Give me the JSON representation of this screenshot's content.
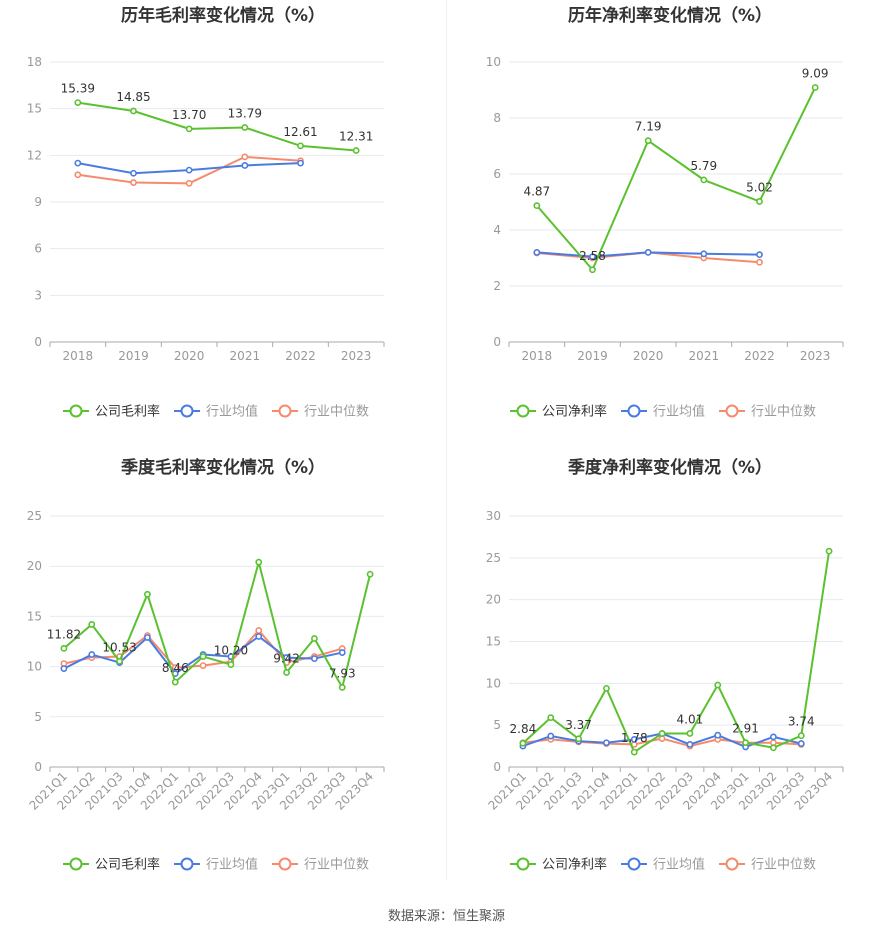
{
  "source": "数据来源：恒生聚源",
  "colors": {
    "company": "#5ac12f",
    "avg": "#4a7be0",
    "median": "#f58a6c",
    "grid": "#e6e9f0",
    "axis": "#999999"
  },
  "chart_data": [
    {
      "type": "line",
      "title": "历年毛利率变化情况（%）",
      "categories": [
        "2018",
        "2019",
        "2020",
        "2021",
        "2022",
        "2023"
      ],
      "ylim": [
        0,
        18
      ],
      "yticks": [
        0,
        3,
        6,
        9,
        12,
        15,
        18
      ],
      "legend_position": "bottom",
      "series": [
        {
          "name": "公司毛利率",
          "role": "company",
          "values": [
            15.39,
            14.85,
            13.7,
            13.79,
            12.61,
            12.31
          ],
          "labels": [
            "15.39",
            "14.85",
            "13.70",
            "13.79",
            "12.61",
            "12.31"
          ]
        },
        {
          "name": "行业均值",
          "role": "avg",
          "values": [
            11.5,
            10.85,
            11.05,
            11.35,
            11.5,
            null
          ]
        },
        {
          "name": "行业中位数",
          "role": "median",
          "values": [
            10.75,
            10.25,
            10.2,
            11.9,
            11.65,
            null
          ]
        }
      ]
    },
    {
      "type": "line",
      "title": "历年净利率变化情况（%）",
      "categories": [
        "2018",
        "2019",
        "2020",
        "2021",
        "2022",
        "2023"
      ],
      "ylim": [
        0,
        10
      ],
      "yticks": [
        0,
        2,
        4,
        6,
        8,
        10
      ],
      "legend_position": "bottom",
      "series": [
        {
          "name": "公司净利率",
          "role": "company",
          "values": [
            4.87,
            2.58,
            7.19,
            5.79,
            5.02,
            9.09
          ],
          "labels": [
            "4.87",
            "2.58",
            "7.19",
            "5.79",
            "5.02",
            "9.09"
          ]
        },
        {
          "name": "行业均值",
          "role": "avg",
          "values": [
            3.2,
            3.05,
            3.2,
            3.15,
            3.12,
            null
          ]
        },
        {
          "name": "行业中位数",
          "role": "median",
          "values": [
            3.18,
            3.0,
            3.2,
            3.0,
            2.85,
            null
          ]
        }
      ]
    },
    {
      "type": "line",
      "title": "季度毛利率变化情况（%）",
      "categories": [
        "2021Q1",
        "2021Q2",
        "2021Q3",
        "2021Q4",
        "2022Q1",
        "2022Q2",
        "2022Q3",
        "2022Q4",
        "2023Q1",
        "2023Q2",
        "2023Q3",
        "2023Q4"
      ],
      "ylim": [
        0,
        25
      ],
      "yticks": [
        0,
        5,
        10,
        15,
        20,
        25
      ],
      "legend_position": "bottom",
      "series": [
        {
          "name": "公司毛利率",
          "role": "company",
          "values": [
            11.82,
            14.2,
            10.53,
            17.2,
            8.46,
            11.0,
            10.2,
            20.4,
            9.42,
            12.8,
            7.93,
            19.2
          ],
          "labels": [
            "11.82",
            "",
            "10.53",
            "",
            "8.46",
            "",
            "10.20",
            "",
            "9.42",
            "",
            "7.93",
            ""
          ]
        },
        {
          "name": "行业均值",
          "role": "avg",
          "values": [
            9.8,
            11.2,
            10.4,
            12.9,
            9.3,
            11.2,
            11.0,
            13.0,
            10.9,
            10.8,
            11.4,
            null
          ]
        },
        {
          "name": "行业中位数",
          "role": "median",
          "values": [
            10.3,
            10.9,
            11.0,
            13.1,
            9.9,
            10.1,
            10.5,
            13.6,
            10.4,
            11.0,
            11.8,
            null
          ]
        }
      ]
    },
    {
      "type": "line",
      "title": "季度净利率变化情况（%）",
      "categories": [
        "2021Q1",
        "2021Q2",
        "2021Q3",
        "2021Q4",
        "2022Q1",
        "2022Q2",
        "2022Q3",
        "2022Q4",
        "2023Q1",
        "2023Q2",
        "2023Q3",
        "2023Q4"
      ],
      "ylim": [
        0,
        30
      ],
      "yticks": [
        0,
        5,
        10,
        15,
        20,
        25,
        30
      ],
      "legend_position": "bottom",
      "series": [
        {
          "name": "公司净利率",
          "role": "company",
          "values": [
            2.84,
            5.9,
            3.37,
            9.4,
            1.78,
            4.0,
            4.01,
            9.8,
            2.91,
            2.3,
            3.74,
            25.8
          ],
          "labels": [
            "2.84",
            "",
            "3.37",
            "",
            "1.78",
            "",
            "4.01",
            "",
            "2.91",
            "",
            "3.74",
            ""
          ]
        },
        {
          "name": "行业均值",
          "role": "avg",
          "values": [
            2.5,
            3.7,
            3.1,
            2.9,
            3.3,
            4.0,
            2.7,
            3.8,
            2.4,
            3.6,
            2.8,
            null
          ]
        },
        {
          "name": "行业中位数",
          "role": "median",
          "values": [
            2.9,
            3.3,
            3.0,
            2.8,
            2.7,
            3.4,
            2.5,
            3.3,
            2.9,
            2.9,
            2.7,
            null
          ]
        }
      ]
    }
  ]
}
